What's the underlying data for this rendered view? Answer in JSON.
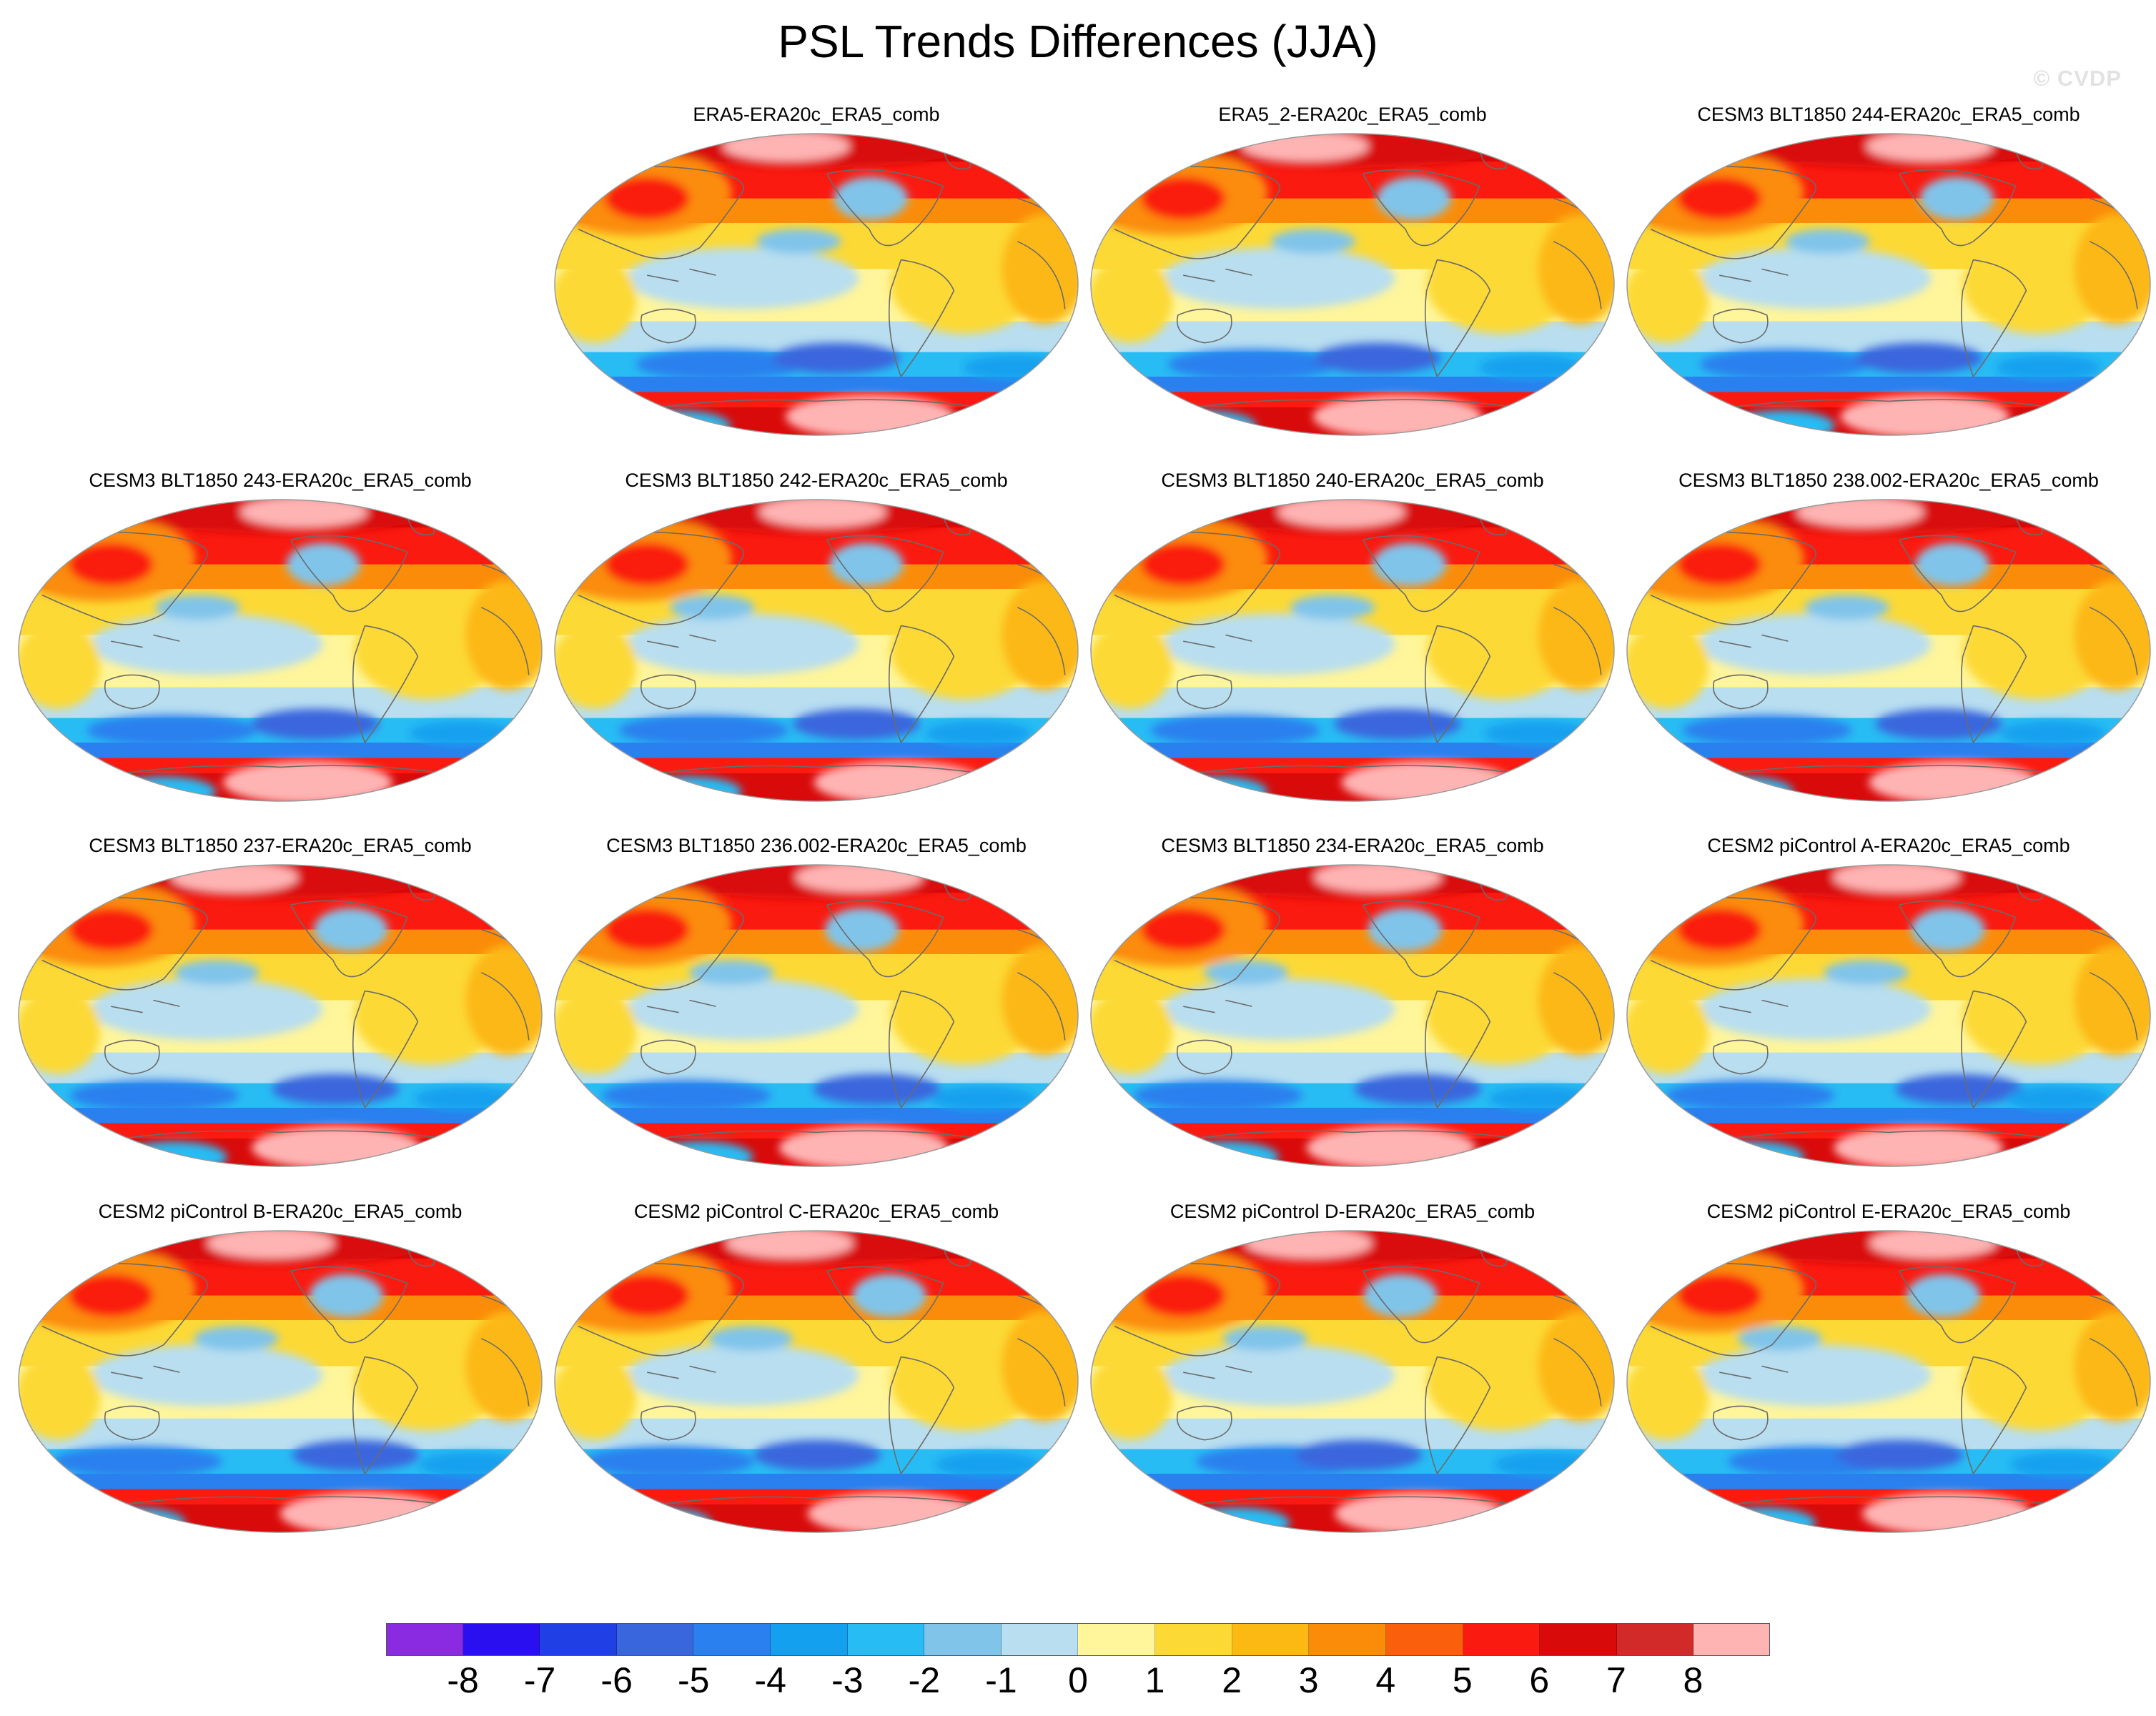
{
  "page": {
    "title": "PSL Trends Differences (JJA)",
    "watermark": "© CVDP"
  },
  "chart_data": {
    "type": "map-panels",
    "title": "PSL Trends Differences (JJA)",
    "variable": "PSL trend difference",
    "season": "JJA",
    "projection": "global ellipse (Robinson-like)",
    "panels": [
      {
        "label": "ERA5-ERA20c_ERA5_comb"
      },
      {
        "label": "ERA5_2-ERA20c_ERA5_comb"
      },
      {
        "label": "CESM3 BLT1850 244-ERA20c_ERA5_comb"
      },
      {
        "label": "CESM3 BLT1850 243-ERA20c_ERA5_comb"
      },
      {
        "label": "CESM3 BLT1850 242-ERA20c_ERA5_comb"
      },
      {
        "label": "CESM3 BLT1850 240-ERA20c_ERA5_comb"
      },
      {
        "label": "CESM3 BLT1850 238.002-ERA20c_ERA5_comb"
      },
      {
        "label": "CESM3 BLT1850 237-ERA20c_ERA5_comb"
      },
      {
        "label": "CESM3 BLT1850 236.002-ERA20c_ERA5_comb"
      },
      {
        "label": "CESM3 BLT1850 234-ERA20c_ERA5_comb"
      },
      {
        "label": "CESM2 piControl A-ERA20c_ERA5_comb"
      },
      {
        "label": "CESM2 piControl B-ERA20c_ERA5_comb"
      },
      {
        "label": "CESM2 piControl C-ERA20c_ERA5_comb"
      },
      {
        "label": "CESM2 piControl D-ERA20c_ERA5_comb"
      },
      {
        "label": "CESM2 piControl E-ERA20c_ERA5_comb"
      }
    ],
    "colorbar": {
      "ticks": [
        "-8",
        "-7",
        "-6",
        "-5",
        "-4",
        "-3",
        "-2",
        "-1",
        "0",
        "1",
        "2",
        "3",
        "4",
        "5",
        "6",
        "7",
        "8"
      ],
      "colors": [
        "#8a2be2",
        "#2a10f0",
        "#2040e6",
        "#3a66dd",
        "#2a80ee",
        "#12a0ef",
        "#28bcf4",
        "#80c4ea",
        "#b8def0",
        "#fff59a",
        "#fcd935",
        "#fcb813",
        "#fb8c09",
        "#fa5f0c",
        "#fa1a10",
        "#d90a0a",
        "#d12a28",
        "#ffb4b4"
      ]
    }
  },
  "style": {
    "coastline": "#6b6b6b",
    "outline": "#999999"
  }
}
